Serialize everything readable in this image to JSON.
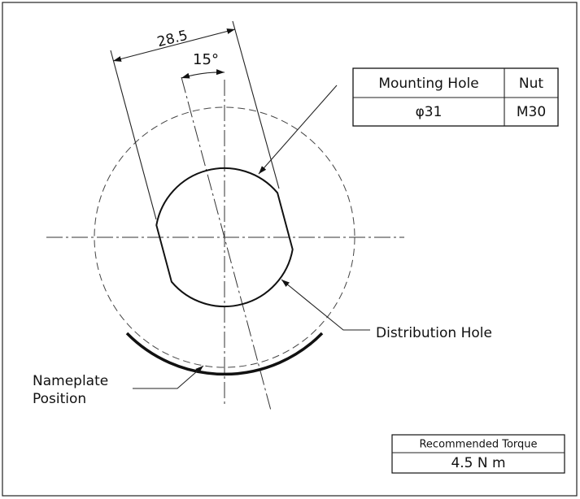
{
  "dimension": {
    "width": "28.5",
    "angle": "15°"
  },
  "table": {
    "header": [
      "Mounting Hole",
      "Nut"
    ],
    "rows": [
      [
        "φ31",
        "M30"
      ]
    ]
  },
  "labels": {
    "distribution_hole": "Distribution Hole",
    "nameplate": [
      "Nameplate",
      "Position"
    ]
  },
  "torque": {
    "title": "Recommended Torque",
    "value": "4.5 N m"
  }
}
